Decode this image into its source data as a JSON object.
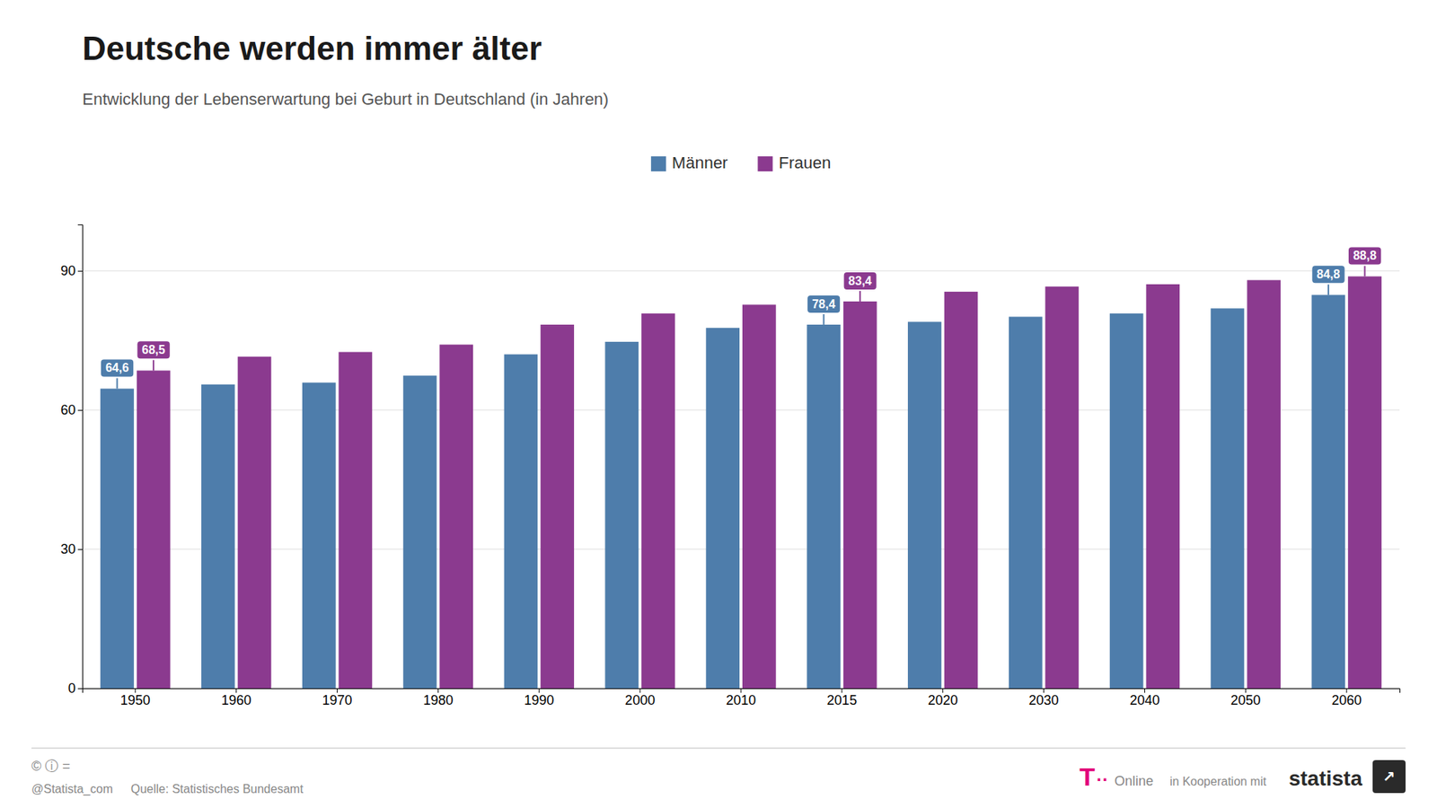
{
  "chart_data": {
    "type": "bar",
    "title": "Deutsche werden immer älter",
    "subtitle": "Entwicklung der Lebenserwartung bei Geburt in Deutschland (in Jahren)",
    "source": "Quelle: Statistisches Bundesamt",
    "categories": [
      "1950",
      "1960",
      "1970",
      "1980",
      "1990",
      "2000",
      "2010",
      "2015",
      "2020",
      "2030",
      "2040",
      "2050",
      "2060"
    ],
    "series": [
      {
        "name": "Männer",
        "color": "#4e7dab",
        "values": [
          64.6,
          65.5,
          65.9,
          67.4,
          72.0,
          74.7,
          77.7,
          78.4,
          79.0,
          80.1,
          80.8,
          81.9,
          84.8
        ],
        "value_labels": [
          "64,6",
          null,
          null,
          null,
          null,
          null,
          null,
          "78,4",
          null,
          null,
          null,
          null,
          "84,8"
        ]
      },
      {
        "name": "Frauen",
        "color": "#8b3a8f",
        "values": [
          68.5,
          71.5,
          72.5,
          74.1,
          78.4,
          80.8,
          82.7,
          83.4,
          85.5,
          86.6,
          87.1,
          88.0,
          88.8
        ],
        "value_labels": [
          "68,5",
          null,
          null,
          null,
          null,
          null,
          null,
          "83,4",
          null,
          null,
          null,
          null,
          "88,8"
        ]
      }
    ],
    "ylim": [
      0,
      100
    ],
    "yticks": [
      0,
      30,
      60,
      90
    ],
    "grid": true,
    "legend": "top",
    "data_labels": true,
    "annotations": [
      "© ⓘ =",
      "@Statista_com",
      "T",
      "··",
      "Online",
      "in Kooperation mit",
      "statista",
      "↗"
    ]
  }
}
